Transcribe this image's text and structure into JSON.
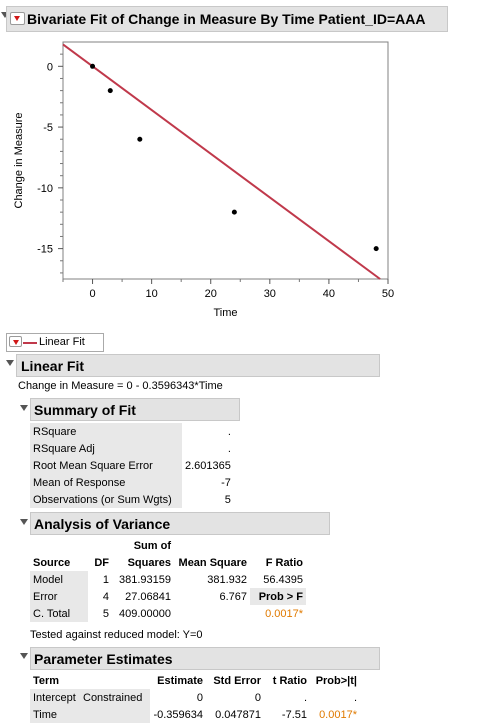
{
  "header": {
    "title": "Bivariate Fit of Change in Measure By Time Patient_ID=AAA"
  },
  "chart_data": {
    "type": "scatter",
    "xlabel": "Time",
    "ylabel": "Change in Measure",
    "xlim": [
      -5,
      50
    ],
    "ylim": [
      -17.5,
      2
    ],
    "x_ticks": [
      "0",
      "10",
      "20",
      "30",
      "40",
      "50"
    ],
    "y_ticks": [
      "0",
      "-5",
      "-10",
      "-15"
    ],
    "x_tick_values": [
      0,
      10,
      20,
      30,
      40,
      50
    ],
    "y_tick_values": [
      0,
      -5,
      -10,
      -15
    ],
    "points": [
      [
        0,
        0
      ],
      [
        3,
        -2
      ],
      [
        8,
        -6
      ],
      [
        24,
        -12
      ],
      [
        48,
        -15
      ]
    ],
    "fit_line": {
      "intercept": 0,
      "slope": -0.3596343,
      "color": "#c0394b"
    }
  },
  "legend": {
    "label": "Linear Fit",
    "color": "#c0394b"
  },
  "linear_fit": {
    "title": "Linear Fit",
    "equation": "Change in Measure = 0 - 0.3596343*Time"
  },
  "summary_of_fit": {
    "title": "Summary of Fit",
    "rows": [
      {
        "label": "RSquare",
        "value": "."
      },
      {
        "label": "RSquare Adj",
        "value": "."
      },
      {
        "label": "Root Mean Square Error",
        "value": "2.601365"
      },
      {
        "label": "Mean of Response",
        "value": "-7"
      },
      {
        "label": "Observations (or Sum Wgts)",
        "value": "5"
      }
    ]
  },
  "anova": {
    "title": "Analysis of Variance",
    "header_top": "Sum of",
    "columns": [
      "Source",
      "DF",
      "Squares",
      "Mean Square",
      "F Ratio"
    ],
    "rows": [
      {
        "source": "Model",
        "df": "1",
        "ss": "381.93159",
        "ms": "381.932",
        "f": "56.4395"
      },
      {
        "source": "Error",
        "df": "4",
        "ss": "27.06841",
        "ms": "6.767",
        "f": "Prob > F"
      },
      {
        "source": "C. Total",
        "df": "5",
        "ss": "409.00000",
        "ms": "",
        "f": "0.0017*"
      }
    ],
    "note": "Tested against reduced model: Y=0"
  },
  "parameter_estimates": {
    "title": "Parameter Estimates",
    "columns": [
      "Term",
      "",
      "Estimate",
      "Std Error",
      "t Ratio",
      "Prob>|t|"
    ],
    "rows": [
      {
        "term": "Intercept",
        "flag": "Constrained",
        "estimate": "0",
        "stderr": "0",
        "t": ".",
        "p": "."
      },
      {
        "term": "Time",
        "flag": "",
        "estimate": "-0.359634",
        "stderr": "0.047871",
        "t": "-7.51",
        "p": "0.0017*"
      }
    ]
  }
}
